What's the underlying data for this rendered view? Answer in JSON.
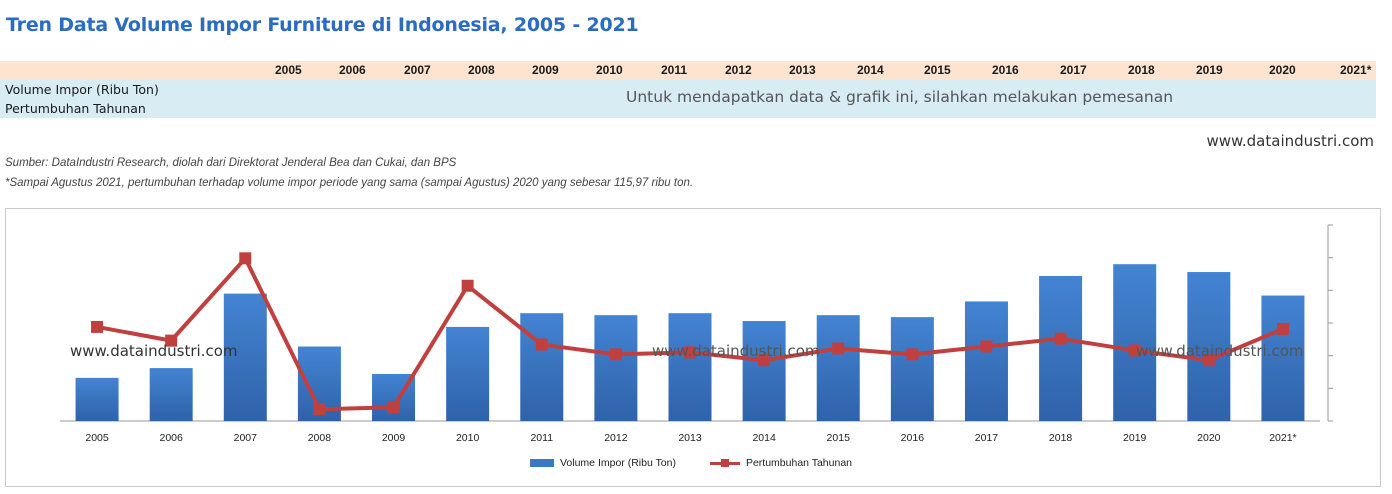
{
  "title": "Tren Data Volume Impor Furniture di Indonesia, 2005 - 2021",
  "table": {
    "years": [
      "2005",
      "2006",
      "2007",
      "2008",
      "2009",
      "2010",
      "2011",
      "2012",
      "2013",
      "2014",
      "2015",
      "2016",
      "2017",
      "2018",
      "2019",
      "2020",
      "2021*"
    ],
    "rows": [
      "Volume Impor (Ribu Ton)",
      "Pertumbuhan Tahunan"
    ],
    "order_note": "Untuk mendapatkan data & grafik ini, silahkan melakukan pemesanan"
  },
  "website": "www.dataindustri.com",
  "source": "Sumber: DataIndustri Research, diolah dari Direktorat Jenderal Bea dan Cukai, dan BPS",
  "footnote": "*Sampai Agustus 2021, pertumbuhan terhadap volume impor periode yang sama (sampai Agustus) 2020 yang sebesar 115,97 ribu ton.",
  "colors": {
    "bar": "#3a78c4",
    "line": "#c0403f",
    "title": "#2a6cc4",
    "header_bg": "#fde4d0",
    "row_bg": "#d7ecf3"
  },
  "chart_data": {
    "type": "bar",
    "categories": [
      "2005",
      "2006",
      "2007",
      "2008",
      "2009",
      "2010",
      "2011",
      "2012",
      "2013",
      "2014",
      "2015",
      "2016",
      "2017",
      "2018",
      "2019",
      "2020",
      "2021*"
    ],
    "series": [
      {
        "name": "Volume Impor (Ribu Ton)",
        "type": "bar",
        "values": [
          22,
          27,
          65,
          38,
          24,
          48,
          55,
          54,
          55,
          51,
          54,
          53,
          61,
          74,
          80,
          76,
          64
        ]
      },
      {
        "name": "Pertumbuhan Tahunan",
        "type": "line",
        "values": [
          4.8,
          4.1,
          8.3,
          0.6,
          0.7,
          6.9,
          3.9,
          3.4,
          3.5,
          3.1,
          3.7,
          3.4,
          3.8,
          4.2,
          3.6,
          3.1,
          4.7
        ]
      }
    ],
    "grid": false,
    "legend_position": "bottom",
    "watermarks": [
      "www.dataindustri.com",
      "www.dataindustri.com",
      "www.dataindustri.com"
    ]
  }
}
